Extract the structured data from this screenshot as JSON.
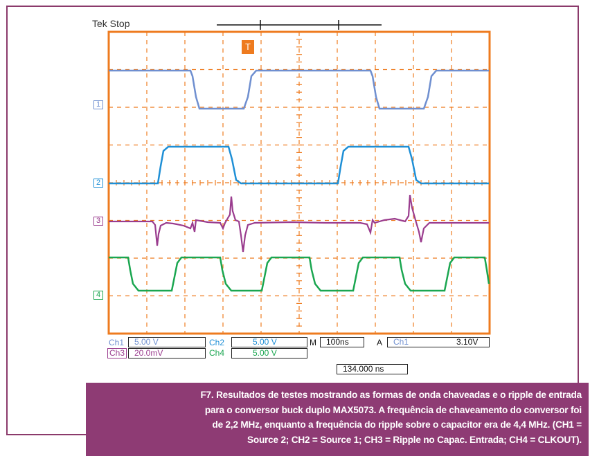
{
  "scope": {
    "status": "Tek Stop",
    "trigger_marker": "T",
    "channels": [
      {
        "marker": "1",
        "label": "Ch1",
        "scale": "5.00 V",
        "color": "#6f8fd0"
      },
      {
        "marker": "2",
        "label": "Ch2",
        "scale": "5.00 V",
        "color": "#1e8fd6"
      },
      {
        "marker": "3",
        "label": "Ch3",
        "scale": "20.0mV",
        "color": "#9a3c8e"
      },
      {
        "marker": "4",
        "label": "Ch4",
        "scale": "5.00 V",
        "color": "#1aa650"
      }
    ],
    "timebase_label": "M",
    "timebase": "100ns",
    "trigger_label": "A",
    "trigger_source": "Ch1",
    "trigger_level": "3.10V",
    "position": "134.000 ns",
    "grid_color": "#ee7b1f"
  },
  "caption": {
    "lines": [
      "F7. Resultados de testes mostrando as formas de onda chaveadas e o ripple de entrada",
      "para o conversor buck duplo MAX5073. A frequência de chaveamento do conversor foi",
      "de 2,2 MHz, enquanto a frequência do ripple sobre o capacitor era de 4,4 MHz. (CH1 =",
      "Source 2; CH2 = Source 1; CH3 = Ripple no Capac. Entrada; CH4 = CLKOUT)."
    ]
  }
}
